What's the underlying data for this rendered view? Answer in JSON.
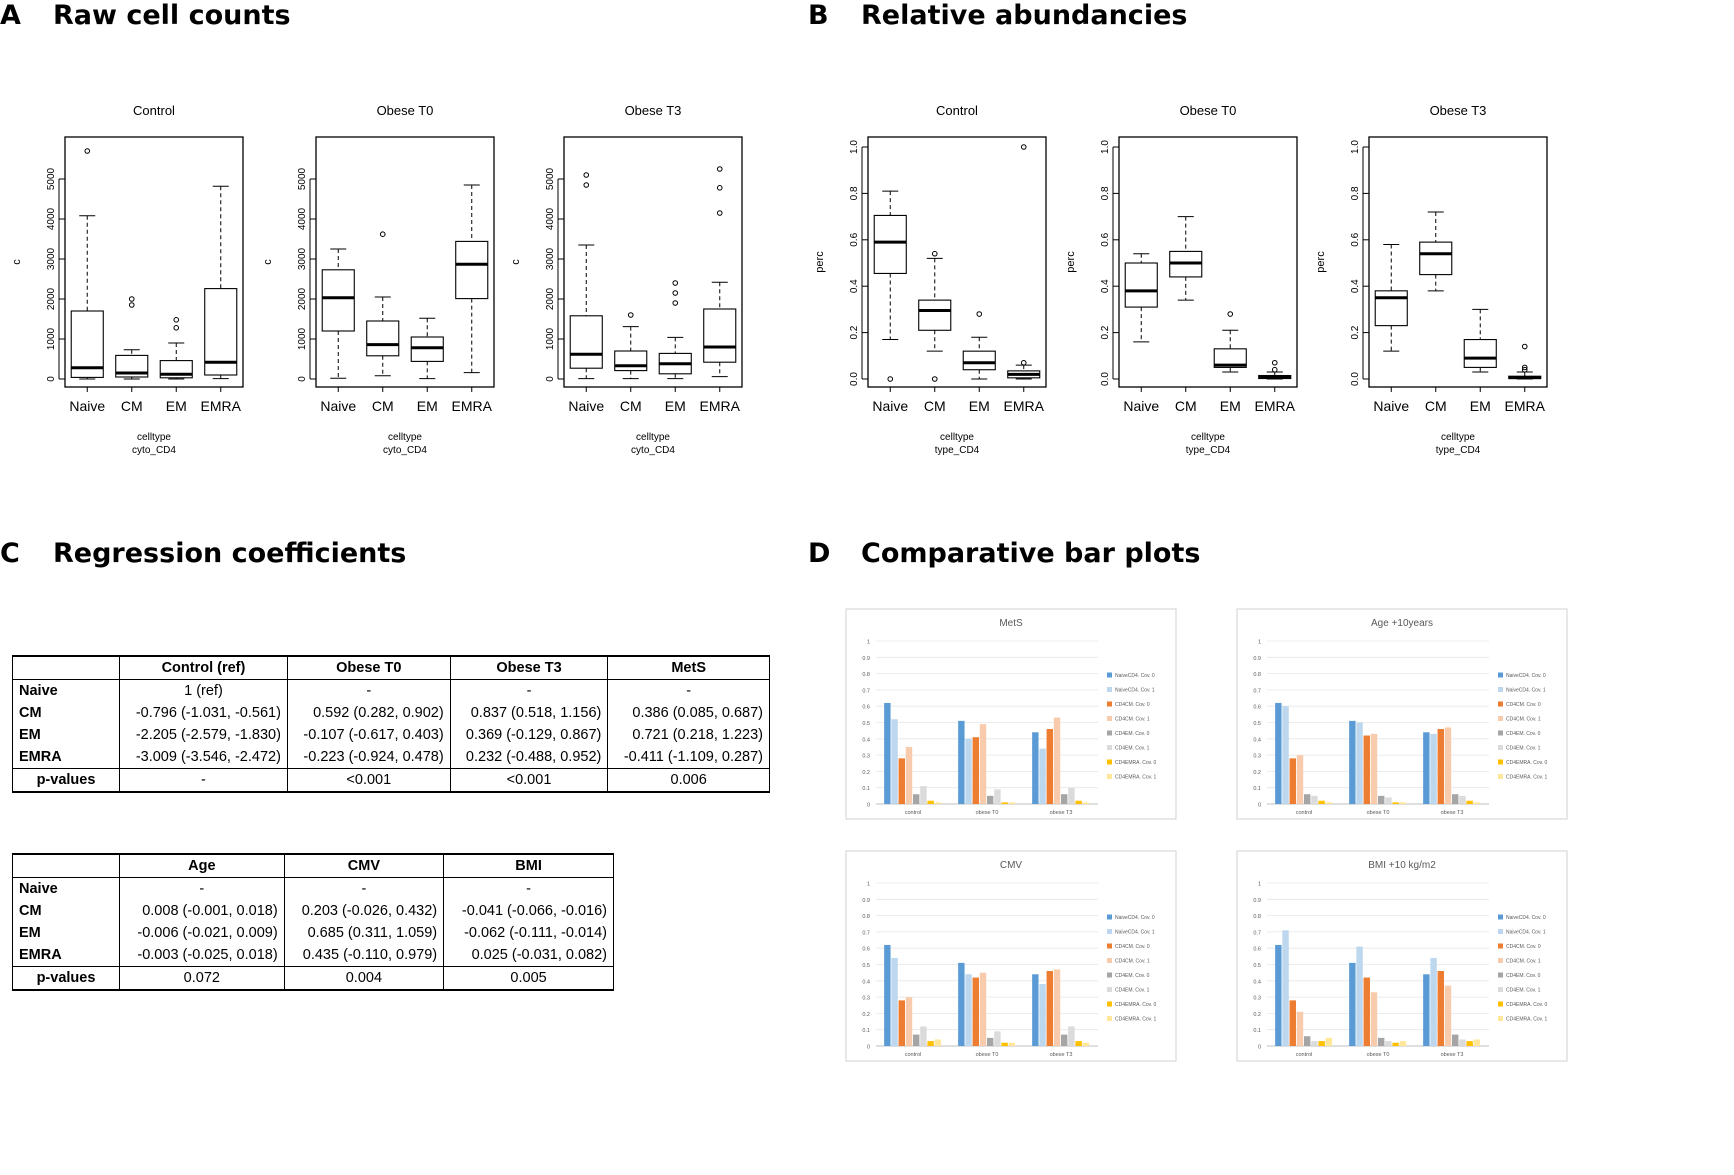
{
  "panels": {
    "a": {
      "letter": "A",
      "title": "Raw cell counts"
    },
    "b": {
      "letter": "B",
      "title": "Relative abundancies"
    },
    "c": {
      "letter": "C",
      "title": "Regression coefficients"
    },
    "d": {
      "letter": "D",
      "title": "Comparative bar plots"
    }
  },
  "chart_data": [
    {
      "type": "boxplot",
      "panel": "A",
      "title": "Control",
      "ylabel": "c",
      "xlabel": "celltype",
      "xlabel2": "cyto_CD4",
      "ylim": [
        0,
        5800
      ],
      "yticks": [
        0,
        1000,
        2000,
        3000,
        4000,
        5000
      ],
      "categories": [
        "Naive",
        "CM",
        "EM",
        "EMRA"
      ],
      "boxes": [
        {
          "wlo": 0,
          "q1": 40,
          "med": 280,
          "q3": 1700,
          "whi": 4080,
          "out": [
            5700
          ]
        },
        {
          "wlo": 0,
          "q1": 50,
          "med": 150,
          "q3": 590,
          "whi": 730,
          "out": [
            1850,
            2000
          ]
        },
        {
          "wlo": 0,
          "q1": 30,
          "med": 120,
          "q3": 460,
          "whi": 900,
          "out": [
            1280,
            1480
          ]
        },
        {
          "wlo": 10,
          "q1": 100,
          "med": 420,
          "q3": 2260,
          "whi": 4820,
          "out": []
        }
      ]
    },
    {
      "type": "boxplot",
      "panel": "A",
      "title": "Obese T0",
      "ylabel": "c",
      "xlabel": "celltype",
      "xlabel2": "cyto_CD4",
      "ylim": [
        0,
        5800
      ],
      "yticks": [
        0,
        1000,
        2000,
        3000,
        4000,
        5000
      ],
      "categories": [
        "Naive",
        "CM",
        "EM",
        "EMRA"
      ],
      "boxes": [
        {
          "wlo": 20,
          "q1": 1200,
          "med": 2030,
          "q3": 2730,
          "whi": 3250,
          "out": []
        },
        {
          "wlo": 80,
          "q1": 580,
          "med": 860,
          "q3": 1450,
          "whi": 2050,
          "out": [
            3620
          ]
        },
        {
          "wlo": 10,
          "q1": 440,
          "med": 780,
          "q3": 1050,
          "whi": 1520,
          "out": []
        },
        {
          "wlo": 160,
          "q1": 2010,
          "med": 2870,
          "q3": 3440,
          "whi": 4850,
          "out": []
        }
      ]
    },
    {
      "type": "boxplot",
      "panel": "A",
      "title": "Obese T3",
      "ylabel": "c",
      "xlabel": "celltype",
      "xlabel2": "cyto_CD4",
      "ylim": [
        0,
        5800
      ],
      "yticks": [
        0,
        1000,
        2000,
        3000,
        4000,
        5000
      ],
      "categories": [
        "Naive",
        "CM",
        "EM",
        "EMRA"
      ],
      "boxes": [
        {
          "wlo": 10,
          "q1": 270,
          "med": 620,
          "q3": 1580,
          "whi": 3350,
          "out": [
            4850,
            5100
          ]
        },
        {
          "wlo": 10,
          "q1": 210,
          "med": 330,
          "q3": 700,
          "whi": 1310,
          "out": [
            1600
          ]
        },
        {
          "wlo": 10,
          "q1": 130,
          "med": 380,
          "q3": 640,
          "whi": 1040,
          "out": [
            1900,
            2150,
            2400
          ]
        },
        {
          "wlo": 60,
          "q1": 420,
          "med": 800,
          "q3": 1750,
          "whi": 2420,
          "out": [
            4150,
            4780,
            5250
          ]
        }
      ]
    },
    {
      "type": "boxplot",
      "panel": "B",
      "title": "Control",
      "ylabel": "perc",
      "xlabel": "celltype",
      "xlabel2": "type_CD4",
      "ylim": [
        0,
        1.0
      ],
      "yticks": [
        0.0,
        0.2,
        0.4,
        0.6,
        0.8,
        1.0
      ],
      "categories": [
        "Naive",
        "CM",
        "EM",
        "EMRA"
      ],
      "boxes": [
        {
          "wlo": 0.17,
          "q1": 0.455,
          "med": 0.59,
          "q3": 0.705,
          "whi": 0.81,
          "out": [
            0.0
          ]
        },
        {
          "wlo": 0.12,
          "q1": 0.21,
          "med": 0.295,
          "q3": 0.34,
          "whi": 0.52,
          "out": [
            0.0,
            0.54
          ]
        },
        {
          "wlo": 0.0,
          "q1": 0.04,
          "med": 0.07,
          "q3": 0.12,
          "whi": 0.18,
          "out": [
            0.28
          ]
        },
        {
          "wlo": 0.0,
          "q1": 0.005,
          "med": 0.02,
          "q3": 0.035,
          "whi": 0.06,
          "out": [
            0.07,
            1.0
          ]
        }
      ]
    },
    {
      "type": "boxplot",
      "panel": "B",
      "title": "Obese T0",
      "ylabel": "perc",
      "xlabel": "celltype",
      "xlabel2": "type_CD4",
      "ylim": [
        0,
        1.0
      ],
      "yticks": [
        0.0,
        0.2,
        0.4,
        0.6,
        0.8,
        1.0
      ],
      "categories": [
        "Naive",
        "CM",
        "EM",
        "EMRA"
      ],
      "boxes": [
        {
          "wlo": 0.16,
          "q1": 0.31,
          "med": 0.38,
          "q3": 0.5,
          "whi": 0.54,
          "out": []
        },
        {
          "wlo": 0.34,
          "q1": 0.44,
          "med": 0.5,
          "q3": 0.55,
          "whi": 0.7,
          "out": []
        },
        {
          "wlo": 0.03,
          "q1": 0.05,
          "med": 0.06,
          "q3": 0.13,
          "whi": 0.21,
          "out": [
            0.28
          ]
        },
        {
          "wlo": 0.0,
          "q1": 0.002,
          "med": 0.007,
          "q3": 0.015,
          "whi": 0.03,
          "out": [
            0.04,
            0.07
          ]
        }
      ]
    },
    {
      "type": "boxplot",
      "panel": "B",
      "title": "Obese T3",
      "ylabel": "perc",
      "xlabel": "celltype",
      "xlabel2": "type_CD4",
      "ylim": [
        0,
        1.0
      ],
      "yticks": [
        0.0,
        0.2,
        0.4,
        0.6,
        0.8,
        1.0
      ],
      "categories": [
        "Naive",
        "CM",
        "EM",
        "EMRA"
      ],
      "boxes": [
        {
          "wlo": 0.12,
          "q1": 0.23,
          "med": 0.35,
          "q3": 0.38,
          "whi": 0.58,
          "out": []
        },
        {
          "wlo": 0.38,
          "q1": 0.45,
          "med": 0.54,
          "q3": 0.59,
          "whi": 0.72,
          "out": []
        },
        {
          "wlo": 0.03,
          "q1": 0.05,
          "med": 0.09,
          "q3": 0.17,
          "whi": 0.3,
          "out": []
        },
        {
          "wlo": 0.0,
          "q1": 0.002,
          "med": 0.006,
          "q3": 0.012,
          "whi": 0.03,
          "out": [
            0.04,
            0.05,
            0.14
          ]
        }
      ]
    },
    {
      "type": "bar",
      "panel": "D",
      "title": "MetS",
      "categories": [
        "control",
        "obese T0",
        "obese T3"
      ],
      "ylim": [
        0,
        1
      ],
      "yticks": [
        "0",
        "0.1",
        "0.2",
        "0.3",
        "0.4",
        "0.5",
        "0.6",
        "0.7",
        "0.8",
        "0.9",
        "1"
      ],
      "series": [
        {
          "name": "NaiveCD4. Cov. 0",
          "values": [
            0.62,
            0.51,
            0.44
          ]
        },
        {
          "name": "NaiveCD4. Cov. 1",
          "values": [
            0.52,
            0.4,
            0.34
          ]
        },
        {
          "name": "CD4CM. Cov. 0",
          "values": [
            0.28,
            0.41,
            0.46
          ]
        },
        {
          "name": "CD4CM. Cov. 1",
          "values": [
            0.35,
            0.49,
            0.53
          ]
        },
        {
          "name": "CD4EM. Cov. 0",
          "values": [
            0.06,
            0.05,
            0.06
          ]
        },
        {
          "name": "CD4EM. Cov. 1",
          "values": [
            0.11,
            0.09,
            0.1
          ]
        },
        {
          "name": "CD4EMRA. Cov. 0",
          "values": [
            0.02,
            0.01,
            0.02
          ]
        },
        {
          "name": "CD4EMRA. Cov. 1",
          "values": [
            0.01,
            0.01,
            0.01
          ]
        }
      ]
    },
    {
      "type": "bar",
      "panel": "D",
      "title": "Age +10years",
      "categories": [
        "control",
        "obese T0",
        "obese T3"
      ],
      "ylim": [
        0,
        1
      ],
      "yticks": [
        "0",
        "0.1",
        "0.2",
        "0.3",
        "0.4",
        "0.5",
        "0.6",
        "0.7",
        "0.8",
        "0.9",
        "1"
      ],
      "series": [
        {
          "name": "NaiveCD4. Cov. 0",
          "values": [
            0.62,
            0.51,
            0.44
          ]
        },
        {
          "name": "NaiveCD4. Cov. 1",
          "values": [
            0.6,
            0.5,
            0.43
          ]
        },
        {
          "name": "CD4CM. Cov. 0",
          "values": [
            0.28,
            0.42,
            0.46
          ]
        },
        {
          "name": "CD4CM. Cov. 1",
          "values": [
            0.3,
            0.43,
            0.47
          ]
        },
        {
          "name": "CD4EM. Cov. 0",
          "values": [
            0.06,
            0.05,
            0.06
          ]
        },
        {
          "name": "CD4EM. Cov. 1",
          "values": [
            0.05,
            0.04,
            0.05
          ]
        },
        {
          "name": "CD4EMRA. Cov. 0",
          "values": [
            0.02,
            0.01,
            0.02
          ]
        },
        {
          "name": "CD4EMRA. Cov. 1",
          "values": [
            0.01,
            0.01,
            0.01
          ]
        }
      ]
    },
    {
      "type": "bar",
      "panel": "D",
      "title": "CMV",
      "categories": [
        "control",
        "obese T0",
        "obese T3"
      ],
      "ylim": [
        0,
        1
      ],
      "yticks": [
        "0",
        "0.1",
        "0.2",
        "0.3",
        "0.4",
        "0.5",
        "0.6",
        "0.7",
        "0.8",
        "0.9",
        "1"
      ],
      "series": [
        {
          "name": "NaiveCD4. Cov. 0",
          "values": [
            0.62,
            0.51,
            0.44
          ]
        },
        {
          "name": "NaiveCD4. Cov. 1",
          "values": [
            0.54,
            0.44,
            0.38
          ]
        },
        {
          "name": "CD4CM. Cov. 0",
          "values": [
            0.28,
            0.42,
            0.46
          ]
        },
        {
          "name": "CD4CM. Cov. 1",
          "values": [
            0.3,
            0.45,
            0.47
          ]
        },
        {
          "name": "CD4EM. Cov. 0",
          "values": [
            0.07,
            0.05,
            0.07
          ]
        },
        {
          "name": "CD4EM. Cov. 1",
          "values": [
            0.12,
            0.09,
            0.12
          ]
        },
        {
          "name": "CD4EMRA. Cov. 0",
          "values": [
            0.03,
            0.02,
            0.03
          ]
        },
        {
          "name": "CD4EMRA. Cov. 1",
          "values": [
            0.04,
            0.02,
            0.02
          ]
        }
      ]
    },
    {
      "type": "bar",
      "panel": "D",
      "title": "BMI +10 kg/m2",
      "categories": [
        "control",
        "obese T0",
        "obese T3"
      ],
      "ylim": [
        0,
        1
      ],
      "yticks": [
        "0",
        "0.1",
        "0.2",
        "0.3",
        "0.4",
        "0.5",
        "0.6",
        "0.7",
        "0.8",
        "0.9",
        "1"
      ],
      "series": [
        {
          "name": "NaiveCD4. Cov. 0",
          "values": [
            0.62,
            0.51,
            0.44
          ]
        },
        {
          "name": "NaiveCD4. Cov. 1",
          "values": [
            0.71,
            0.61,
            0.54
          ]
        },
        {
          "name": "CD4CM. Cov. 0",
          "values": [
            0.28,
            0.42,
            0.46
          ]
        },
        {
          "name": "CD4CM. Cov. 1",
          "values": [
            0.21,
            0.33,
            0.37
          ]
        },
        {
          "name": "CD4EM. Cov. 0",
          "values": [
            0.06,
            0.05,
            0.07
          ]
        },
        {
          "name": "CD4EM. Cov. 1",
          "values": [
            0.03,
            0.03,
            0.04
          ]
        },
        {
          "name": "CD4EMRA. Cov. 0",
          "values": [
            0.03,
            0.02,
            0.03
          ]
        },
        {
          "name": "CD4EMRA. Cov. 1",
          "values": [
            0.05,
            0.03,
            0.04
          ]
        }
      ]
    }
  ],
  "table1": {
    "headers": [
      "",
      "Control (ref)",
      "Obese T0",
      "Obese T3",
      "MetS"
    ],
    "rows": [
      [
        "Naive",
        "1 (ref)",
        "-",
        "-",
        "-"
      ],
      [
        "CM",
        "-0.796 (-1.031, -0.561)",
        "0.592 (0.282, 0.902)",
        "0.837 (0.518, 1.156)",
        "0.386 (0.085, 0.687)"
      ],
      [
        "EM",
        "-2.205 (-2.579, -1.830)",
        "-0.107 (-0.617, 0.403)",
        "0.369 (-0.129, 0.867)",
        "0.721 (0.218, 1.223)"
      ],
      [
        "EMRA",
        "-3.009 (-3.546, -2.472)",
        "-0.223 (-0.924, 0.478)",
        "0.232 (-0.488, 0.952)",
        "-0.411 (-1.109, 0.287)"
      ]
    ],
    "pvalues": [
      "p-values",
      "-",
      "<0.001",
      "<0.001",
      "0.006"
    ]
  },
  "table2": {
    "headers": [
      "",
      "Age",
      "CMV",
      "BMI"
    ],
    "rows": [
      [
        "Naive",
        "-",
        "-",
        "-"
      ],
      [
        "CM",
        "0.008 (-0.001, 0.018)",
        "0.203 (-0.026, 0.432)",
        "-0.041 (-0.066, -0.016)"
      ],
      [
        "EM",
        "-0.006 (-0.021, 0.009)",
        "0.685 (0.311, 1.059)",
        "-0.062 (-0.111, -0.014)"
      ],
      [
        "EMRA",
        "-0.003 (-0.025, 0.018)",
        "0.435 (-0.110, 0.979)",
        "0.025 (-0.031, 0.082)"
      ]
    ],
    "pvalues": [
      "p-values",
      "0.072",
      "0.004",
      "0.005"
    ]
  },
  "colors": {
    "series": [
      "#5b9bd5",
      "#bdd7ee",
      "#ed7d31",
      "#f8cbad",
      "#a5a5a5",
      "#dbdbdb",
      "#ffc000",
      "#ffe699"
    ]
  }
}
